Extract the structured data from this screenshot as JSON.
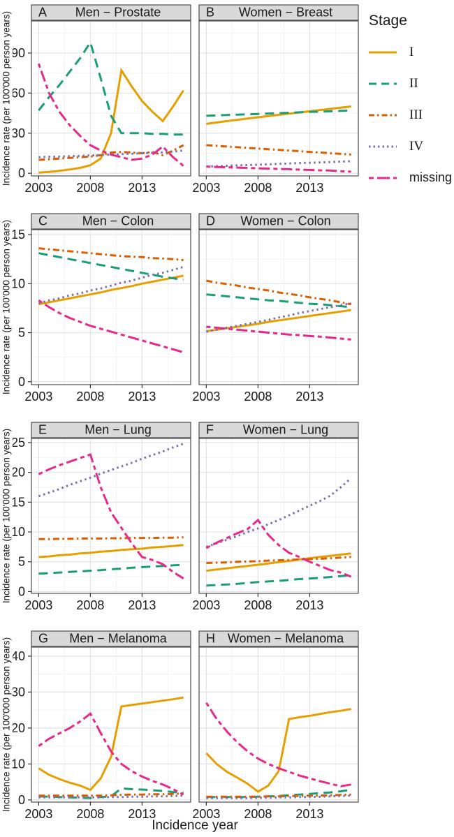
{
  "axis": {
    "y_label": "Incidence rate (per 100'000 person years)",
    "x_label": "Incidence year",
    "x_ticks": [
      2003,
      2008,
      2013
    ],
    "x_minor_ticks": [
      2005.5,
      2010.5,
      2015.5
    ],
    "xlim": [
      2002.3,
      2017.7
    ]
  },
  "legend": {
    "title": "Stage",
    "entries": [
      {
        "label": "I"
      },
      {
        "label": "II"
      },
      {
        "label": "III"
      },
      {
        "label": "IV"
      },
      {
        "label": "missing"
      }
    ]
  },
  "stages": {
    "I": "#E69F00",
    "II": "#1B9E77",
    "III": "#D95F02",
    "IV": "#7570B3",
    "missing": "#E7298A"
  },
  "theme": {
    "strip_fill": "#D9D9D9",
    "strip_border": "#4d4d4d",
    "panel_border": "#4d4d4d",
    "grid_major": "#E4E4E4",
    "grid_minor": "#F2F2F2",
    "tick_color": "#333333",
    "text_color": "#1a1a1a"
  },
  "chart_data": {
    "type": "line",
    "x": [
      2003,
      2004,
      2005,
      2006,
      2007,
      2008,
      2009,
      2010,
      2011,
      2012,
      2013,
      2014,
      2015,
      2016,
      2017
    ],
    "panels": [
      {
        "id": "A",
        "title": "Men − Prostate",
        "ylim": [
          -2,
          114
        ],
        "yticks": [
          0,
          30,
          60,
          90
        ],
        "series": [
          {
            "name": "I",
            "values": [
              0.5,
              1,
              1.8,
              2.8,
              4,
              6,
              11,
              30,
              77,
              65,
              54,
              46,
              39,
              50,
              62
            ]
          },
          {
            "name": "II",
            "values": [
              47,
              57,
              66,
              76,
              86,
              98,
              71,
              43,
              30,
              30,
              30,
              29.5,
              29.5,
              29,
              29
            ]
          },
          {
            "name": "III",
            "values": [
              10,
              10.5,
              11,
              11.5,
              12,
              12.5,
              13.5,
              15.5,
              16,
              15.5,
              15,
              16,
              13.5,
              17,
              21
            ]
          },
          {
            "name": "IV",
            "values": [
              12,
              12.3,
              12.5,
              12.8,
              13,
              13.3,
              13.5,
              14,
              14.3,
              14.6,
              15,
              15.3,
              15.6,
              16.2,
              17
            ]
          },
          {
            "name": "missing",
            "values": [
              82,
              60,
              46,
              36,
              28,
              21,
              17,
              14,
              12,
              10,
              11,
              14,
              20,
              12,
              5.5
            ]
          }
        ]
      },
      {
        "id": "B",
        "title": "Women − Breast",
        "ylim": [
          -2,
          114
        ],
        "yticks": [
          0,
          30,
          60,
          90
        ],
        "series": [
          {
            "name": "I",
            "values": [
              37,
              38,
              39,
              40,
              41,
              41.9,
              42.8,
              43.7,
              44.6,
              45.5,
              46.4,
              47.3,
              48.2,
              49.1,
              50
            ]
          },
          {
            "name": "II",
            "values": [
              43,
              43.3,
              43.6,
              43.9,
              44.1,
              44.4,
              44.7,
              45,
              45.3,
              45.6,
              45.9,
              46.1,
              46.4,
              46.7,
              47
            ]
          },
          {
            "name": "III",
            "values": [
              21,
              20.5,
              20,
              19.5,
              19,
              18.5,
              18,
              17.5,
              17,
              16.5,
              16,
              15.5,
              15,
              14.5,
              14
            ]
          },
          {
            "name": "IV",
            "values": [
              5,
              5.3,
              5.6,
              5.9,
              6.1,
              6.4,
              6.7,
              7,
              7.3,
              7.6,
              7.9,
              8.1,
              8.4,
              8.7,
              9
            ]
          },
          {
            "name": "missing",
            "values": [
              5,
              4.7,
              4.5,
              4.2,
              4,
              3.7,
              3.5,
              3.2,
              3,
              2.7,
              2.5,
              2.2,
              2,
              1.5,
              1.2
            ]
          }
        ]
      },
      {
        "id": "C",
        "title": "Men − Colon",
        "ylim": [
          -0.3,
          15.5
        ],
        "yticks": [
          0,
          5,
          10,
          15
        ],
        "series": [
          {
            "name": "I",
            "values": [
              7.9,
              8.1,
              8.3,
              8.5,
              8.7,
              8.9,
              9.1,
              9.35,
              9.55,
              9.75,
              10,
              10.2,
              10.4,
              10.6,
              10.8
            ]
          },
          {
            "name": "II",
            "values": [
              13.1,
              12.9,
              12.7,
              12.5,
              12.3,
              12.1,
              11.9,
              11.7,
              11.5,
              11.3,
              11.1,
              10.9,
              10.7,
              10.55,
              10.4
            ]
          },
          {
            "name": "III",
            "values": [
              13.6,
              13.5,
              13.4,
              13.3,
              13.2,
              13.1,
              13,
              12.9,
              12.8,
              12.75,
              12.7,
              12.6,
              12.55,
              12.5,
              12.4
            ]
          },
          {
            "name": "IV",
            "values": [
              8,
              8.3,
              8.5,
              8.8,
              9,
              9.3,
              9.5,
              9.8,
              10.1,
              10.3,
              10.6,
              10.9,
              11.1,
              11.4,
              11.7
            ]
          },
          {
            "name": "missing",
            "values": [
              8.3,
              7.6,
              7,
              6.5,
              6.1,
              5.7,
              5.4,
              5.1,
              4.8,
              4.5,
              4.2,
              3.9,
              3.6,
              3.3,
              3
            ]
          }
        ]
      },
      {
        "id": "D",
        "title": "Women − Colon",
        "ylim": [
          -0.3,
          15.5
        ],
        "yticks": [
          0,
          5,
          10,
          15
        ],
        "series": [
          {
            "name": "I",
            "values": [
              5.15,
              5.3,
              5.45,
              5.6,
              5.75,
              5.9,
              6.1,
              6.25,
              6.4,
              6.55,
              6.7,
              6.85,
              7,
              7.15,
              7.3
            ]
          },
          {
            "name": "II",
            "values": [
              8.9,
              8.8,
              8.7,
              8.6,
              8.5,
              8.4,
              8.3,
              8.25,
              8.15,
              8.05,
              7.95,
              7.9,
              7.8,
              7.7,
              7.6
            ]
          },
          {
            "name": "III",
            "values": [
              10.3,
              10.1,
              9.95,
              9.8,
              9.6,
              9.45,
              9.3,
              9.1,
              8.95,
              8.8,
              8.6,
              8.45,
              8.3,
              8.1,
              7.9
            ]
          },
          {
            "name": "IV",
            "values": [
              5.1,
              5.3,
              5.5,
              5.7,
              5.9,
              6.1,
              6.3,
              6.55,
              6.75,
              7,
              7.2,
              7.4,
              7.6,
              7.8,
              8
            ]
          },
          {
            "name": "missing",
            "values": [
              5.6,
              5.5,
              5.4,
              5.3,
              5.2,
              5.1,
              5,
              4.9,
              4.8,
              4.75,
              4.65,
              4.6,
              4.5,
              4.4,
              4.3
            ]
          }
        ]
      },
      {
        "id": "E",
        "title": "Men − Lung",
        "ylim": [
          -0.3,
          25.7
        ],
        "yticks": [
          0,
          5,
          10,
          15,
          20,
          25
        ],
        "series": [
          {
            "name": "I",
            "values": [
              5.8,
              5.9,
              6.1,
              6.2,
              6.4,
              6.5,
              6.7,
              6.8,
              7,
              7.1,
              7.2,
              7.4,
              7.5,
              7.65,
              7.8
            ]
          },
          {
            "name": "II",
            "values": [
              3,
              3.1,
              3.2,
              3.3,
              3.4,
              3.5,
              3.6,
              3.75,
              3.85,
              4,
              4.1,
              4.2,
              4.3,
              4.4,
              4.5
            ]
          },
          {
            "name": "III",
            "values": [
              8.8,
              8.8,
              8.85,
              8.85,
              8.9,
              8.9,
              8.9,
              8.95,
              8.95,
              9,
              9,
              9,
              9.05,
              9.05,
              9.1
            ]
          },
          {
            "name": "IV",
            "values": [
              16,
              16.6,
              17.2,
              17.9,
              18.5,
              19.1,
              19.8,
              20.4,
              21,
              21.6,
              22.3,
              22.9,
              23.5,
              24.2,
              24.8
            ]
          },
          {
            "name": "missing",
            "values": [
              19.7,
              20.5,
              21.2,
              21.8,
              22.4,
              23,
              17.5,
              13.3,
              10.7,
              8.1,
              5.8,
              5.3,
              4.6,
              3.3,
              2.2
            ]
          }
        ]
      },
      {
        "id": "F",
        "title": "Women − Lung",
        "ylim": [
          -0.3,
          25.7
        ],
        "yticks": [
          0,
          5,
          10,
          15,
          20,
          25
        ],
        "series": [
          {
            "name": "I",
            "values": [
              3.5,
              3.7,
              3.9,
              4.1,
              4.3,
              4.5,
              4.7,
              4.95,
              5.15,
              5.4,
              5.6,
              5.8,
              6,
              6.2,
              6.4
            ]
          },
          {
            "name": "II",
            "values": [
              1,
              1.1,
              1.2,
              1.3,
              1.45,
              1.6,
              1.7,
              1.8,
              1.95,
              2.1,
              2.2,
              2.3,
              2.45,
              2.6,
              2.7
            ]
          },
          {
            "name": "III",
            "values": [
              4.8,
              4.85,
              4.9,
              5,
              5.05,
              5.1,
              5.2,
              5.25,
              5.3,
              5.4,
              5.45,
              5.5,
              5.6,
              5.7,
              5.8
            ]
          },
          {
            "name": "IV",
            "values": [
              7.5,
              8.1,
              8.7,
              9.3,
              10,
              10.6,
              11.3,
              12,
              12.8,
              13.6,
              14.4,
              15.2,
              16.1,
              17.5,
              19
            ]
          },
          {
            "name": "missing",
            "values": [
              7.3,
              8.2,
              9,
              9.8,
              10.5,
              12,
              9.5,
              7.8,
              6.5,
              5.8,
              5,
              4.3,
              3.6,
              3.2,
              2.5
            ]
          }
        ]
      },
      {
        "id": "G",
        "title": "Men − Melanoma",
        "ylim": [
          -0.6,
          42.5
        ],
        "yticks": [
          0,
          10,
          20,
          30,
          40
        ],
        "series": [
          {
            "name": "I",
            "values": [
              8.8,
              7,
              5.8,
              4.8,
              4,
              2.8,
              6,
              12,
              26,
              26.4,
              26.8,
              27.2,
              27.6,
              28,
              28.5
            ]
          },
          {
            "name": "II",
            "values": [
              1,
              0.9,
              0.8,
              0.7,
              0.6,
              0.5,
              0.8,
              1,
              3.2,
              3,
              2.9,
              2.7,
              2.5,
              2.2,
              2
            ]
          },
          {
            "name": "III",
            "values": [
              1.2,
              1.2,
              1.2,
              1.2,
              1.2,
              1.2,
              1.2,
              1.3,
              1.4,
              1.5,
              1.5,
              1.6,
              1.6,
              1.7,
              1.8
            ]
          },
          {
            "name": "IV",
            "values": [
              0.7,
              0.7,
              0.7,
              0.7,
              0.7,
              0.7,
              0.7,
              0.8,
              0.8,
              0.9,
              0.9,
              1,
              1,
              1.1,
              1.2
            ]
          },
          {
            "name": "missing",
            "values": [
              15,
              17,
              18.5,
              20,
              21.8,
              24,
              18.6,
              13.5,
              10,
              8,
              6.5,
              5.3,
              4.3,
              3,
              1.5
            ]
          }
        ]
      },
      {
        "id": "H",
        "title": "Women − Melanoma",
        "ylim": [
          -0.6,
          42.5
        ],
        "yticks": [
          0,
          10,
          20,
          30,
          40
        ],
        "series": [
          {
            "name": "I",
            "values": [
              13,
              10,
              7.8,
              6.2,
              4.5,
              2.3,
              4,
              8,
              22.5,
              23,
              23.4,
              23.9,
              24.4,
              24.8,
              25.3
            ]
          },
          {
            "name": "II",
            "values": [
              0.8,
              0.8,
              0.8,
              0.8,
              0.8,
              0.9,
              1,
              1.1,
              1.3,
              1.5,
              1.7,
              1.9,
              2.1,
              2.4,
              2.8
            ]
          },
          {
            "name": "III",
            "values": [
              0.9,
              0.9,
              0.9,
              0.9,
              0.9,
              0.9,
              1,
              1,
              1.1,
              1.1,
              1.2,
              1.2,
              1.3,
              1.4,
              1.5
            ]
          },
          {
            "name": "IV",
            "values": [
              0.5,
              0.5,
              0.5,
              0.5,
              0.5,
              0.6,
              0.6,
              0.7,
              0.7,
              0.8,
              0.8,
              0.9,
              1,
              1.1,
              1.2
            ]
          },
          {
            "name": "missing",
            "values": [
              27,
              22.5,
              19,
              16,
              13.5,
              11.5,
              10,
              8.8,
              7.8,
              6.8,
              6,
              5.2,
              4.5,
              3.8,
              4.3
            ]
          }
        ]
      }
    ]
  }
}
